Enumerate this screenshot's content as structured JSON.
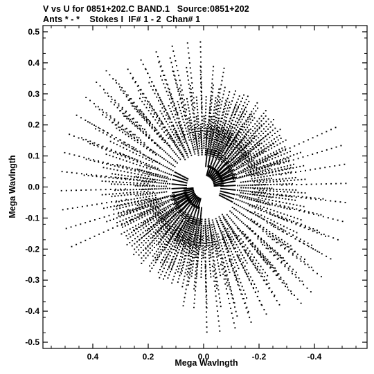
{
  "title_line1": "V vs U for 0851+202.C BAND.1   Source:0851+202",
  "title_line2": "Ants * - *    Stokes I  IF# 1 - 2  Chan# 1",
  "chart_data": {
    "type": "scatter",
    "xlabel": "Mega Wavlngth",
    "ylabel": "Mega Wavlngth",
    "xlim": [
      0.58,
      -0.59
    ],
    "ylim": [
      -0.52,
      0.52
    ],
    "x_reversed": true,
    "xticks": [
      0.4,
      0.2,
      0.0,
      -0.2,
      -0.4
    ],
    "xtick_labels": [
      "0.4",
      "0.2",
      "0.0",
      "-0.2",
      "-0.4"
    ],
    "yticks": [
      0.5,
      0.4,
      0.3,
      0.2,
      0.1,
      0.0,
      -0.1,
      -0.2,
      -0.3,
      -0.4,
      -0.5
    ],
    "ytick_labels": [
      "0.5",
      "0.4",
      "0.3",
      "0.2",
      "0.1",
      "0.0",
      "-0.1",
      "-0.2",
      "-0.3",
      "-0.4",
      "-0.5"
    ],
    "grid": false,
    "marker_color": "#000000",
    "baselines": [
      {
        "u0": 0.51,
        "v0": 0.06,
        "u1": -0.03,
        "v1": -0.2
      },
      {
        "u0": 0.36,
        "v0": 0.24,
        "u1": 0.06,
        "v1": -0.22
      },
      {
        "u0": 0.31,
        "v0": 0.35,
        "u1": 0.12,
        "v1": -0.16
      },
      {
        "u0": 0.19,
        "v0": 0.34,
        "u1": 0.16,
        "v1": -0.24
      },
      {
        "u0": 0.2,
        "v0": 0.1,
        "u1": -0.36,
        "v1": -0.07
      },
      {
        "u0": 0.08,
        "v0": 0.32,
        "u1": 0.2,
        "v1": -0.25
      },
      {
        "u0": 0.02,
        "v0": 0.29,
        "u1": 0.28,
        "v1": -0.18
      },
      {
        "u0": -0.06,
        "v0": 0.18,
        "u1": 0.31,
        "v1": -0.08
      },
      {
        "u0": -0.05,
        "v0": 0.05,
        "u1": 0.11,
        "v1": -0.03
      },
      {
        "u0": -0.22,
        "v0": 0.11,
        "u1": 0.07,
        "v1": -0.1
      }
    ]
  }
}
